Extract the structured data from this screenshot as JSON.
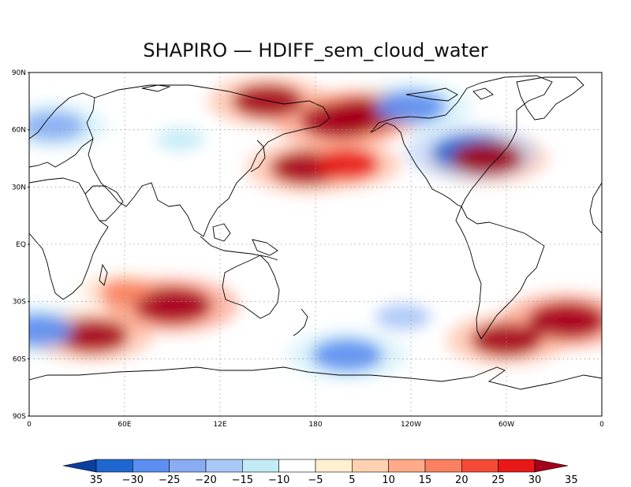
{
  "title": "SHAPIRO — HDIFF_sem_cloud_water",
  "map": {
    "projection": "cylindrical-equidistant",
    "center_longitude": 180,
    "lat_ticks": [
      "90N",
      "60N",
      "30N",
      "EQ",
      "30S",
      "60S",
      "90S"
    ],
    "lon_ticks": [
      "0",
      "60E",
      "12E",
      "180",
      "120W",
      "60W",
      "0"
    ],
    "grid": "dotted",
    "field_features": [
      {
        "lat": 75,
        "lon": 150,
        "value": 30
      },
      {
        "lat": 65,
        "lon": 195,
        "value": 35
      },
      {
        "lat": 68,
        "lon": 210,
        "value": 30
      },
      {
        "lat": 72,
        "lon": 240,
        "value": -30
      },
      {
        "lat": 48,
        "lon": 278,
        "value": -35
      },
      {
        "lat": 45,
        "lon": 288,
        "value": 30
      },
      {
        "lat": 40,
        "lon": 174,
        "value": 30
      },
      {
        "lat": 42,
        "lon": 200,
        "value": 25
      },
      {
        "lat": -32,
        "lon": 90,
        "value": 35
      },
      {
        "lat": -48,
        "lon": 40,
        "value": 30
      },
      {
        "lat": -45,
        "lon": 5,
        "value": -30
      },
      {
        "lat": -58,
        "lon": 200,
        "value": -30
      },
      {
        "lat": -50,
        "lon": 300,
        "value": 30
      },
      {
        "lat": -40,
        "lon": 338,
        "value": 35
      },
      {
        "lat": 62,
        "lon": 15,
        "value": -25
      },
      {
        "lat": 55,
        "lon": 95,
        "value": -15
      },
      {
        "lat": -38,
        "lon": 235,
        "value": -20
      },
      {
        "lat": -25,
        "lon": 60,
        "value": 15
      }
    ]
  },
  "colorbar": {
    "labels": [
      "35",
      "−30",
      "−25",
      "−20",
      "−15",
      "−10",
      "−5",
      "5",
      "10",
      "15",
      "20",
      "25",
      "30",
      "35"
    ],
    "colors": [
      "#0a3f9f",
      "#1f67d0",
      "#5c8ff1",
      "#89adf2",
      "#a9c8f6",
      "#c3ebf6",
      "#ffffff",
      "#fff0d0",
      "#ffd1b0",
      "#ffaa88",
      "#f98060",
      "#f54a38",
      "#e81818",
      "#a5001a"
    ]
  }
}
